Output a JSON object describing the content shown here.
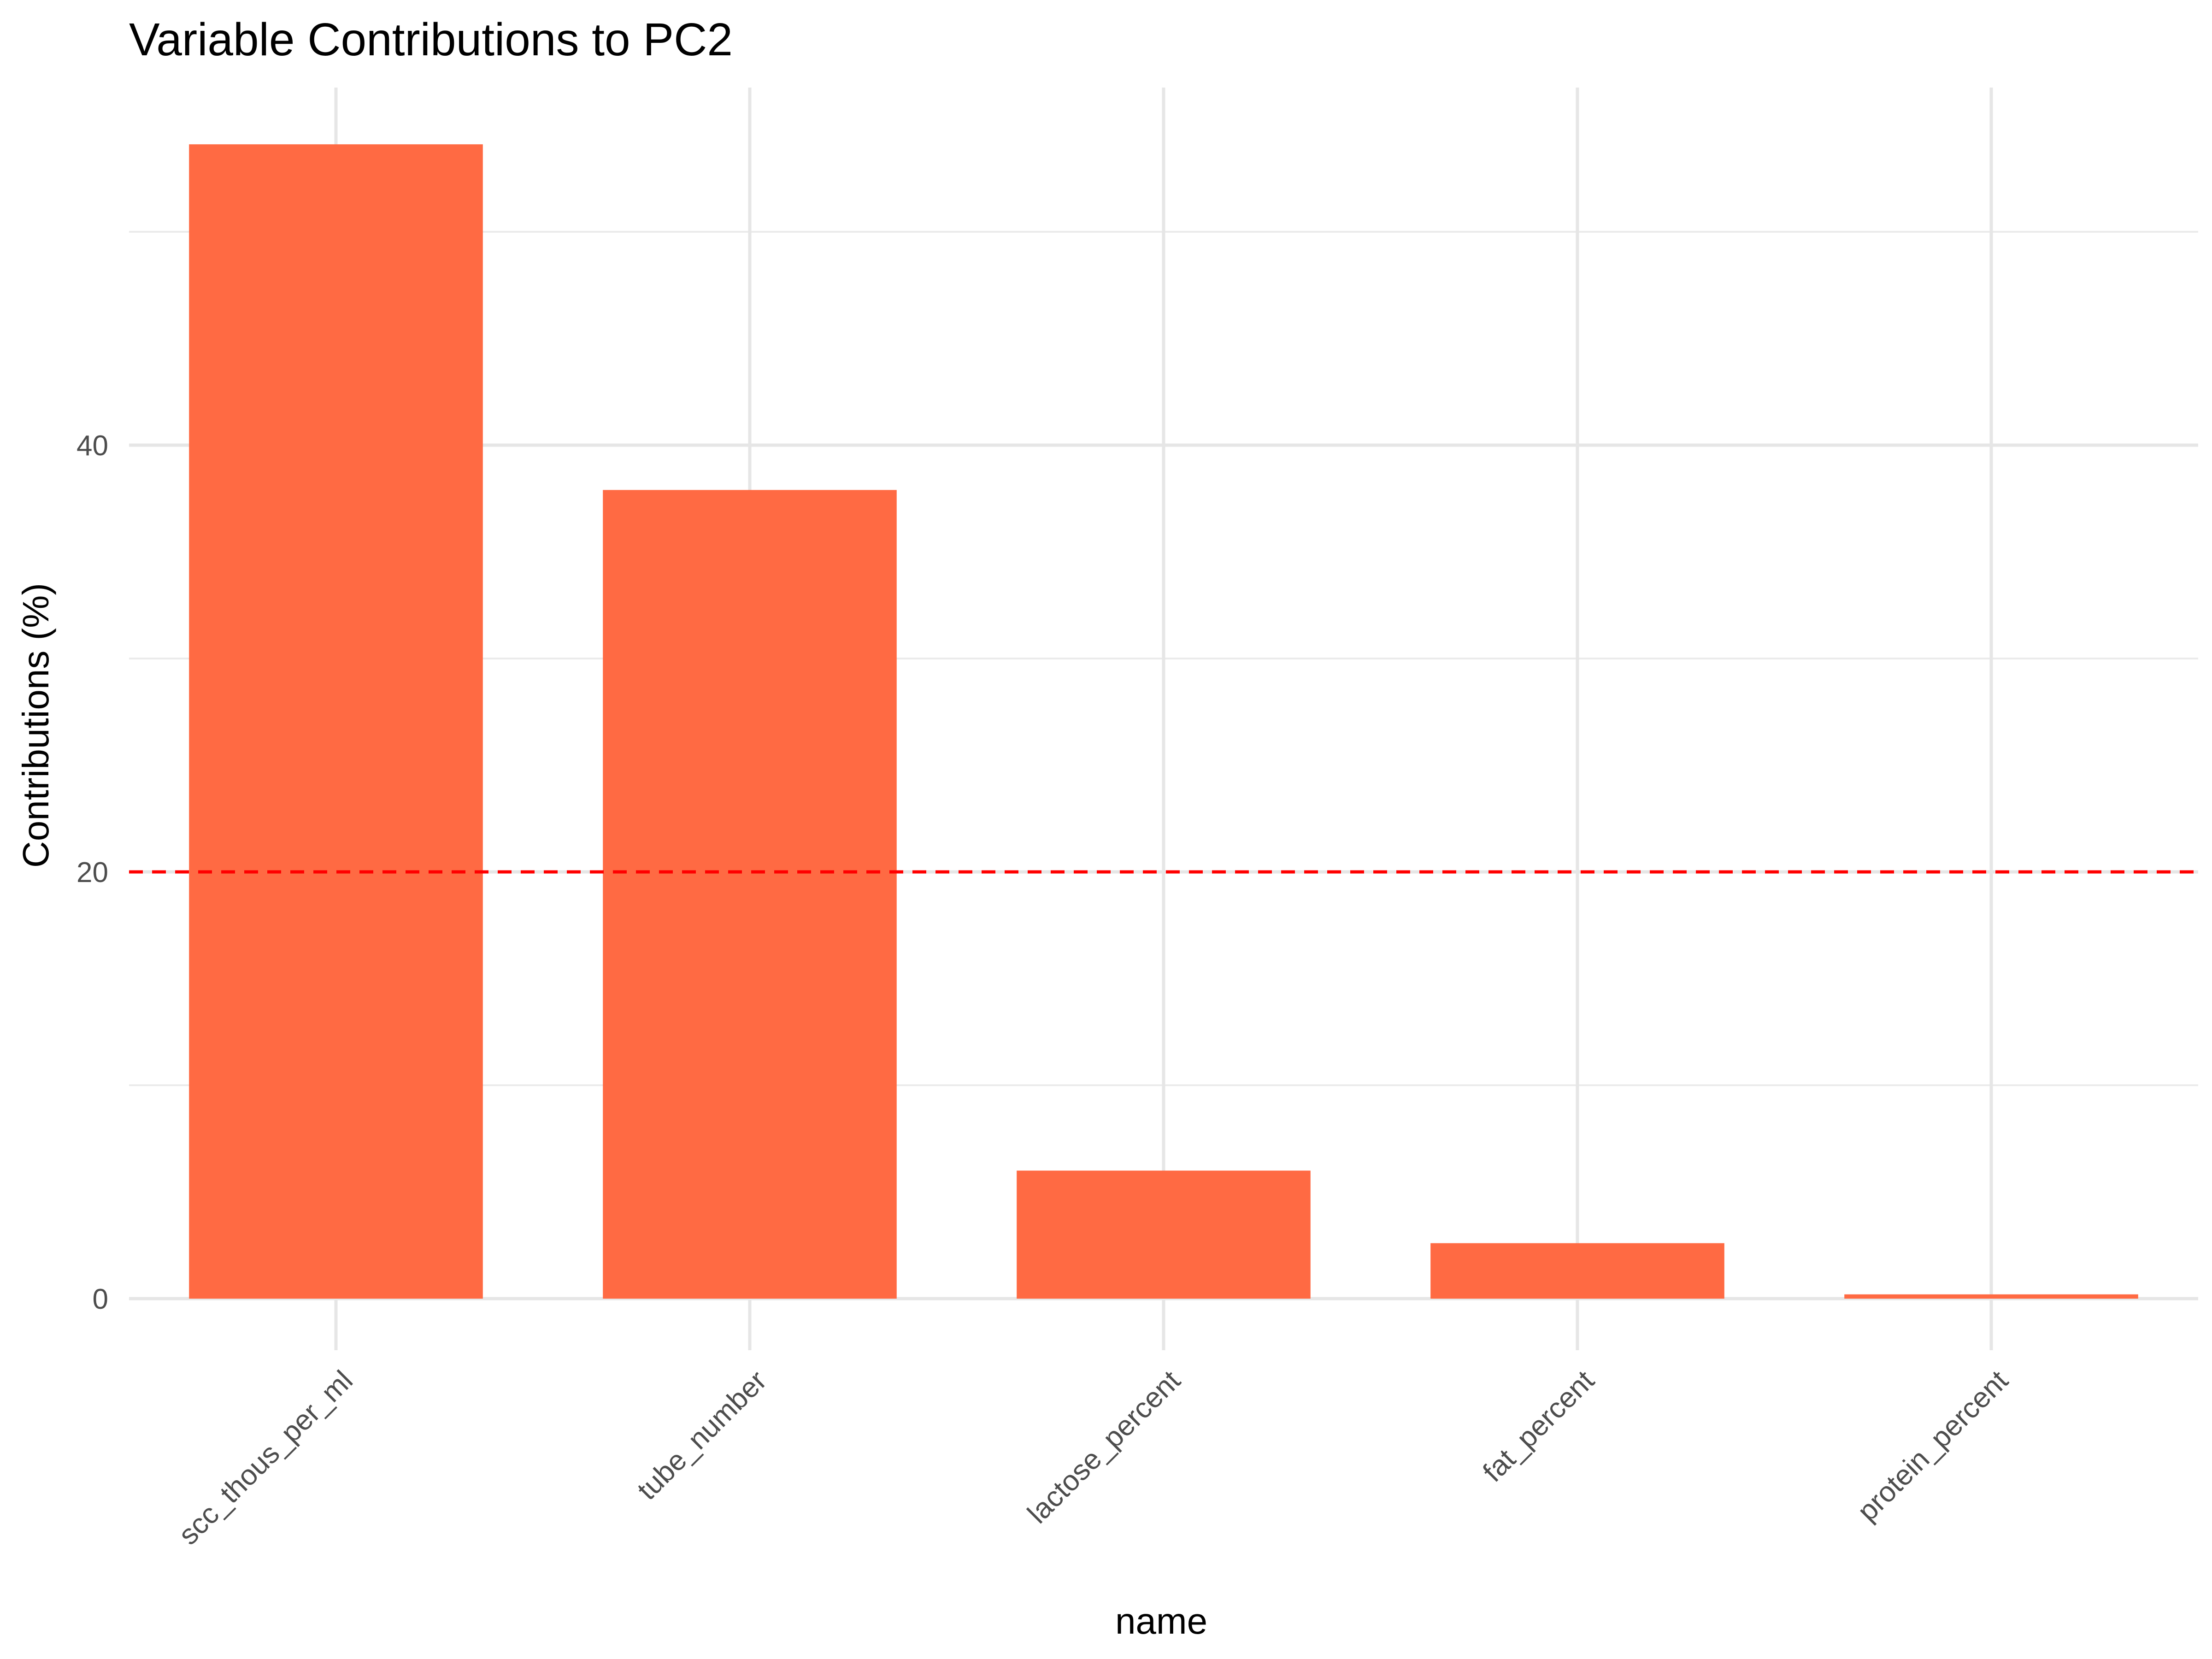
{
  "chart_data": {
    "type": "bar",
    "title": "Variable Contributions to PC2",
    "xlabel": "name",
    "ylabel": "Contributions (%)",
    "categories": [
      "scc_thous_per_ml",
      "tube_number",
      "lactose_percent",
      "fat_percent",
      "protein_percent"
    ],
    "values": [
      54.1,
      37.9,
      6.0,
      2.6,
      0.2
    ],
    "ylim": [
      -2.6,
      56.8
    ],
    "y_ticks": [
      0,
      20,
      40
    ],
    "y_minor_ticks": [
      10,
      30,
      50
    ],
    "reference_line": {
      "y": 20,
      "style": "dashed",
      "color": "#ff0000"
    },
    "bar_color": "#ff6a43",
    "grid": true,
    "legend": "none"
  }
}
